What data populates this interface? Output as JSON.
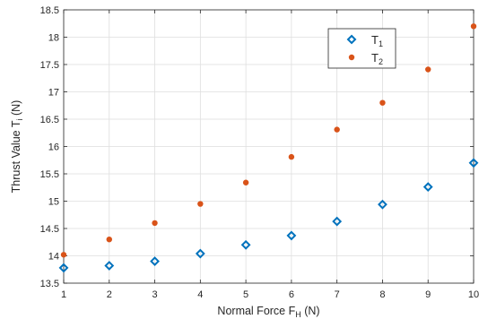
{
  "chart_data": {
    "type": "scatter",
    "x": [
      1,
      2,
      3,
      4,
      5,
      6,
      7,
      8,
      9,
      10
    ],
    "series": [
      {
        "name": "T1",
        "name_main": "T",
        "name_sub": "1",
        "marker": "diamond",
        "color": "#0072BD",
        "values": [
          13.78,
          13.82,
          13.9,
          14.04,
          14.2,
          14.37,
          14.63,
          14.94,
          15.26,
          15.7
        ]
      },
      {
        "name": "T2",
        "name_main": "T",
        "name_sub": "2",
        "marker": "dot",
        "color": "#D95319",
        "values": [
          14.02,
          14.3,
          14.6,
          14.95,
          15.34,
          15.81,
          16.31,
          16.8,
          17.41,
          18.2
        ]
      }
    ],
    "xlabel": {
      "main": "Normal Force F",
      "sub": "H",
      "tail": " (N)"
    },
    "ylabel": {
      "main": "Thrust Value T",
      "sub": "i",
      "tail": " (N)"
    },
    "xlim": [
      1,
      10
    ],
    "ylim": [
      13.5,
      18.5
    ],
    "xticks": [
      1,
      2,
      3,
      4,
      5,
      6,
      7,
      8,
      9,
      10
    ],
    "yticks": [
      13.5,
      14,
      14.5,
      15,
      15.5,
      16,
      16.5,
      17,
      17.5,
      18,
      18.5
    ],
    "xtick_labels": [
      "1",
      "2",
      "3",
      "4",
      "5",
      "6",
      "7",
      "8",
      "9",
      "10"
    ],
    "ytick_labels": [
      "13.5",
      "14",
      "14.5",
      "15",
      "15.5",
      "16",
      "16.5",
      "17",
      "17.5",
      "18",
      "18.5"
    ],
    "grid": true,
    "legend_position": "top-right"
  }
}
